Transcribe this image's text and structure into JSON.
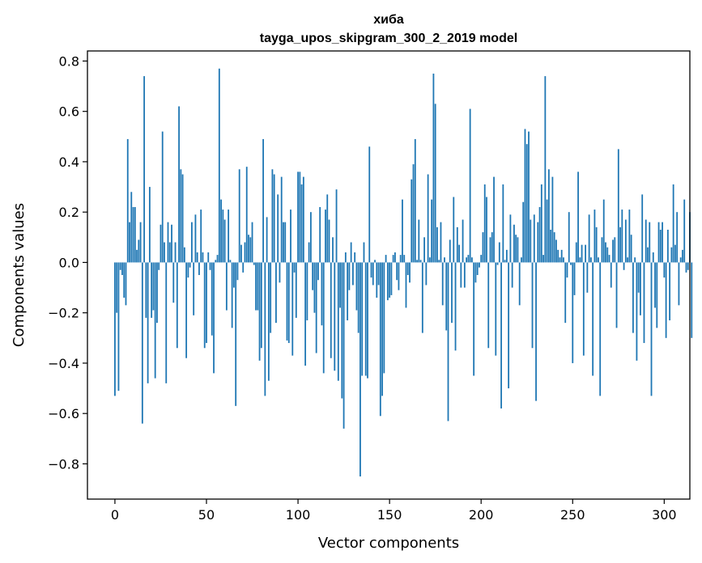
{
  "chart_data": {
    "type": "bar",
    "title": "хиба",
    "subtitle": "tayga_upos_skipgram_300_2_2019 model",
    "xlabel": "Vector components",
    "ylabel": "Components values",
    "xlim": [
      -15,
      314
    ],
    "ylim": [
      -0.94,
      0.84
    ],
    "xticks": [
      0,
      50,
      100,
      150,
      200,
      250,
      300
    ],
    "yticks": [
      -0.8,
      -0.6,
      -0.4,
      -0.2,
      0.0,
      0.2,
      0.4,
      0.6,
      0.8
    ],
    "ytick_labels": [
      "−0.8",
      "−0.6",
      "−0.4",
      "−0.2",
      "0.0",
      "0.2",
      "0.4",
      "0.6",
      "0.8"
    ],
    "grid": false,
    "bar_color": "#1f77b4",
    "values": [
      -0.53,
      -0.2,
      -0.51,
      -0.03,
      -0.05,
      -0.14,
      -0.17,
      0.49,
      0.16,
      0.28,
      0.22,
      0.22,
      0.05,
      0.09,
      0.16,
      -0.64,
      0.74,
      -0.22,
      -0.48,
      0.3,
      -0.22,
      -0.19,
      -0.46,
      -0.24,
      -0.03,
      0.15,
      0.52,
      0.08,
      -0.48,
      0.16,
      0.08,
      0.15,
      -0.16,
      0.08,
      -0.34,
      0.62,
      0.37,
      0.35,
      0.06,
      -0.38,
      -0.06,
      -0.02,
      0.16,
      -0.21,
      0.19,
      0.04,
      -0.05,
      0.21,
      0.04,
      -0.34,
      -0.32,
      0.04,
      -0.03,
      -0.29,
      -0.44,
      0.01,
      0.03,
      0.77,
      0.25,
      0.21,
      0.17,
      -0.19,
      0.21,
      0.01,
      -0.26,
      -0.1,
      -0.57,
      -0.07,
      0.37,
      0.07,
      -0.04,
      0.08,
      0.38,
      0.11,
      0.1,
      0.16,
      -0.01,
      -0.19,
      -0.19,
      -0.39,
      -0.34,
      0.49,
      -0.53,
      0.18,
      -0.47,
      -0.28,
      0.37,
      0.35,
      -0.24,
      0.27,
      -0.08,
      0.34,
      0.16,
      0.16,
      -0.31,
      -0.32,
      0.21,
      -0.37,
      -0.04,
      -0.22,
      0.36,
      0.36,
      0.31,
      0.34,
      -0.41,
      -0.23,
      0.08,
      0.2,
      -0.11,
      -0.2,
      -0.36,
      -0.07,
      0.22,
      -0.25,
      -0.44,
      0.21,
      0.27,
      0.17,
      -0.38,
      0.1,
      -0.43,
      0.29,
      -0.47,
      -0.18,
      -0.54,
      -0.66,
      0.04,
      -0.23,
      -0.11,
      0.08,
      -0.09,
      0.04,
      -0.19,
      -0.28,
      -0.85,
      -0.45,
      0.08,
      -0.45,
      -0.46,
      0.46,
      -0.06,
      -0.09,
      0.01,
      -0.14,
      -0.09,
      -0.61,
      -0.53,
      -0.44,
      0.03,
      -0.15,
      -0.14,
      -0.13,
      0.03,
      0.04,
      -0.07,
      -0.11,
      0.03,
      0.25,
      0.03,
      -0.18,
      -0.05,
      -0.08,
      0.33,
      0.39,
      0.49,
      0.01,
      0.17,
      0.01,
      -0.28,
      0.1,
      -0.09,
      0.35,
      0.02,
      0.25,
      0.75,
      0.63,
      0.14,
      0.01,
      0.16,
      -0.17,
      0.02,
      -0.27,
      -0.63,
      0.09,
      -0.24,
      0.26,
      -0.35,
      0.14,
      0.07,
      -0.1,
      0.17,
      -0.1,
      0.02,
      0.03,
      0.61,
      0.02,
      -0.45,
      -0.08,
      -0.05,
      -0.02,
      0.03,
      0.12,
      0.31,
      0.26,
      -0.34,
      0.1,
      0.12,
      0.34,
      -0.37,
      -0.01,
      0.08,
      -0.58,
      0.31,
      0.01,
      0.05,
      -0.5,
      0.19,
      -0.1,
      0.15,
      0.11,
      0.1,
      -0.17,
      0.02,
      0.24,
      0.53,
      0.47,
      0.52,
      0.17,
      -0.34,
      0.19,
      -0.55,
      0.16,
      0.22,
      0.31,
      0.03,
      0.74,
      0.25,
      0.37,
      0.13,
      0.34,
      0.12,
      0.09,
      0.05,
      0.02,
      0.05,
      0.02,
      -0.24,
      -0.06,
      0.2,
      -0.01,
      -0.4,
      -0.13,
      0.08,
      0.36,
      0.02,
      0.07,
      -0.37,
      0.07,
      -0.12,
      0.19,
      0.02,
      -0.45,
      0.21,
      0.14,
      0.02,
      -0.53,
      0.1,
      0.25,
      0.08,
      0.06,
      0.03,
      -0.1,
      0.09,
      0.1,
      -0.26,
      0.45,
      0.14,
      0.21,
      -0.03,
      0.17,
      0.02,
      0.21,
      0.11,
      -0.28,
      0.02,
      -0.39,
      -0.12,
      -0.21,
      0.27,
      -0.32,
      0.17,
      0.06,
      0.16,
      -0.53,
      0.04,
      -0.18,
      -0.26,
      0.16,
      0.13,
      0.16,
      -0.06,
      -0.3,
      0.13,
      -0.23,
      0.06,
      0.31,
      0.07,
      0.2,
      -0.17,
      0.02,
      0.05,
      0.25,
      -0.04,
      -0.03,
      0.2,
      -0.3
    ]
  }
}
